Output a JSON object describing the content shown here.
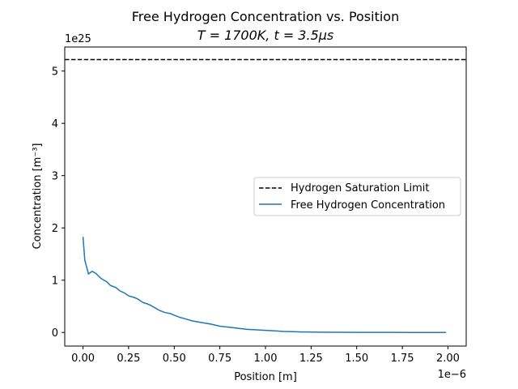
{
  "chart_data": {
    "type": "line",
    "title_line1": "Free Hydrogen Concentration vs. Position",
    "title_line2": "T = 1700K, t = 3.5μs",
    "xlabel": "Position [m]",
    "ylabel": "Concentration [m⁻³]",
    "x_multiplier": "1e−6",
    "y_multiplier": "1e25",
    "xlim": [
      -0.1,
      2.1
    ],
    "ylim": [
      -0.26,
      5.46
    ],
    "x_ticks": [
      0.0,
      0.25,
      0.5,
      0.75,
      1.0,
      1.25,
      1.5,
      1.75,
      2.0
    ],
    "x_tick_labels": [
      "0.00",
      "0.25",
      "0.50",
      "0.75",
      "1.00",
      "1.25",
      "1.50",
      "1.75",
      "2.00"
    ],
    "y_ticks": [
      0,
      1,
      2,
      3,
      4,
      5
    ],
    "y_tick_labels": [
      "0",
      "1",
      "2",
      "3",
      "4",
      "5"
    ],
    "grid": false,
    "legend_position": "center-right",
    "series": [
      {
        "name": "Hydrogen Saturation Limit",
        "style": "dashed",
        "color": "#000000",
        "x": [
          -0.1,
          2.1
        ],
        "y": [
          5.22,
          5.22
        ]
      },
      {
        "name": "Free Hydrogen Concentration",
        "style": "solid",
        "color": "#1f77b4",
        "x": [
          0.0,
          0.01,
          0.03,
          0.05,
          0.07,
          0.1,
          0.13,
          0.15,
          0.18,
          0.2,
          0.23,
          0.25,
          0.28,
          0.3,
          0.33,
          0.35,
          0.37,
          0.4,
          0.42,
          0.45,
          0.48,
          0.5,
          0.53,
          0.56,
          0.6,
          0.65,
          0.7,
          0.75,
          0.8,
          0.85,
          0.9,
          0.95,
          1.0,
          1.05,
          1.1,
          1.15,
          1.2,
          1.25,
          1.3,
          1.35,
          1.4,
          1.5,
          1.6,
          1.7,
          1.8,
          1.9,
          1.99
        ],
        "y": [
          1.83,
          1.38,
          1.12,
          1.17,
          1.13,
          1.03,
          0.97,
          0.9,
          0.86,
          0.8,
          0.75,
          0.7,
          0.67,
          0.64,
          0.57,
          0.55,
          0.52,
          0.46,
          0.42,
          0.38,
          0.36,
          0.33,
          0.29,
          0.26,
          0.22,
          0.19,
          0.16,
          0.12,
          0.1,
          0.08,
          0.06,
          0.05,
          0.04,
          0.03,
          0.02,
          0.015,
          0.01,
          0.008,
          0.005,
          0.004,
          0.003,
          0.002,
          0.001,
          0.001,
          0.0,
          0.0,
          0.0
        ]
      }
    ]
  }
}
